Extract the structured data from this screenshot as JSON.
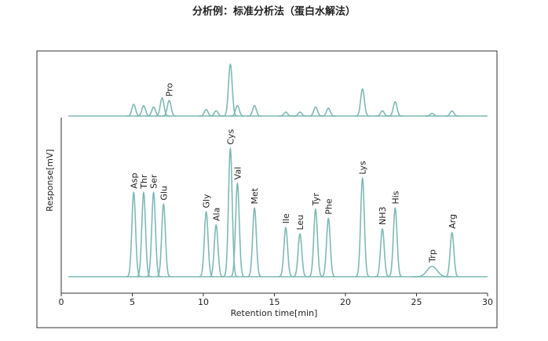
{
  "chart_data": {
    "type": "chromatogram",
    "title": "分析例：标准分析法（蛋白水解法）",
    "x_label": "Retention time[min]",
    "y_label": "Response[mV]",
    "xlim": [
      0,
      30
    ],
    "xticks": [
      0,
      5,
      10,
      15,
      20,
      25,
      30
    ],
    "ylim": [
      0,
      100
    ],
    "series": [
      {
        "color": "#7fb9b6",
        "x": [
          5.1,
          5.8,
          6.5,
          7.1,
          7.6,
          10.2,
          10.9,
          11.9,
          12.4,
          13.6,
          15.8,
          16.8,
          17.9,
          18.8,
          21.2,
          22.6,
          23.5,
          26.1,
          27.5
        ],
        "values": [
          9,
          8,
          7,
          14,
          12,
          5,
          4,
          40,
          8,
          8,
          3,
          3,
          7,
          6,
          21,
          4,
          11,
          2,
          4
        ],
        "labels": [
          null,
          null,
          null,
          null,
          "Pro",
          null,
          null,
          null,
          null,
          null,
          null,
          null,
          null,
          null,
          null,
          null,
          null,
          null,
          null
        ]
      },
      {
        "color": "#7fb9b6",
        "x": [
          5.1,
          5.8,
          6.5,
          7.2,
          10.2,
          10.9,
          11.9,
          12.4,
          13.6,
          15.8,
          16.8,
          17.9,
          18.8,
          21.2,
          22.6,
          23.5,
          26.1,
          27.5
        ],
        "values": [
          65,
          65,
          65,
          56,
          50,
          40,
          99,
          72,
          53,
          38,
          33,
          52,
          45,
          76,
          37,
          53,
          8,
          34
        ],
        "labels": [
          "Asp",
          "Thr",
          "Ser",
          "Glu",
          "Gly",
          "Ala",
          "Cys",
          "Val",
          "Met",
          "Ile",
          "Leu",
          "Tyr",
          "Phe",
          "Lys",
          "NH3",
          "His",
          "Trp",
          "Arg"
        ]
      }
    ]
  }
}
